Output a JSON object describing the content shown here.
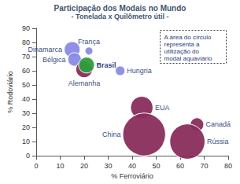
{
  "chart_data": {
    "type": "scatter",
    "title": "Participação dos Modais no Mundo",
    "subtitle": "- Tonelada x Quilômetro útil -",
    "xlabel": "% Ferroviário",
    "ylabel": "% Rodoviário",
    "annotation": "A área do círculo representa a utilização do modal aquaviário",
    "names": [
      "Dinamarca",
      "França",
      "Bélgica",
      "Alemanha",
      "Brasil",
      "Hungria",
      "EUA",
      "China",
      "Canadá",
      "Rússia"
    ],
    "x": [
      15,
      22,
      16,
      20,
      21,
      35,
      44,
      45,
      67,
      63
    ],
    "values": [
      75,
      74,
      68,
      61,
      64,
      60,
      34,
      15,
      22,
      10
    ],
    "sizes": [
      5.5,
      1.4,
      4,
      6,
      5.5,
      2,
      11,
      40,
      4,
      27
    ],
    "colors": [
      "#8a8ae6",
      "#8a8ae6",
      "#8a8ae6",
      "#8a2d5c",
      "#2e9e3e",
      "#8a8ae6",
      "#8a2d5c",
      "#8a2d5c",
      "#8a2d5c",
      "#8a2d5c"
    ],
    "xlim": [
      0,
      80
    ],
    "xticks": [
      0,
      10,
      20,
      30,
      40,
      50,
      60,
      70,
      80
    ],
    "ylim": [
      0,
      90
    ],
    "yticks": [
      0,
      10,
      20,
      30,
      40,
      50,
      60,
      70,
      80,
      90
    ],
    "grid": false
  }
}
